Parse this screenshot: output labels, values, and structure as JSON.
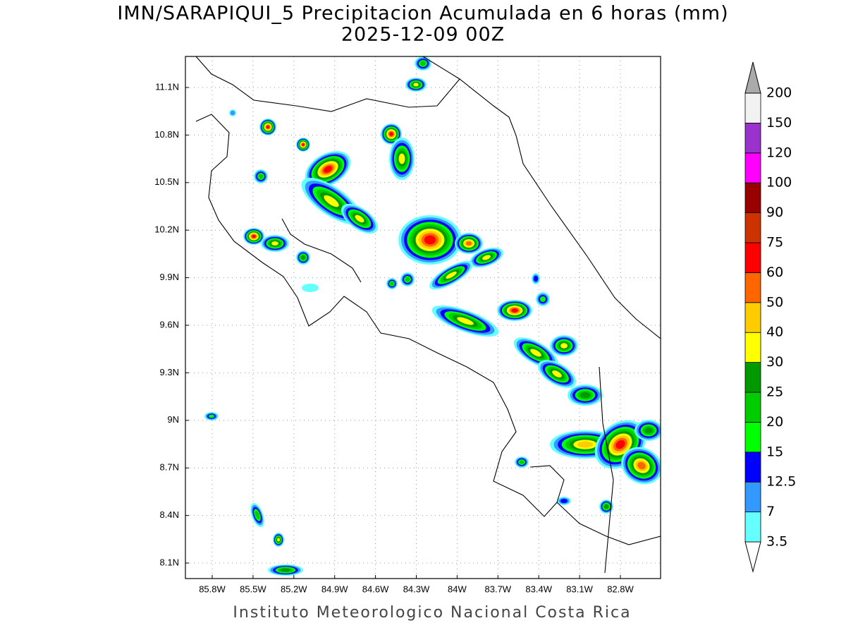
{
  "title": "IMN/SARAPIQUI_5 Precipitacion Acumulada en 6 horas (mm)",
  "subtitle": "2025-12-09 00Z",
  "footer": "Instituto Meteorologico Nacional Costa Rica",
  "lat_labels": [
    "11.1N",
    "10.8N",
    "10.5N",
    "10.2N",
    "9.9N",
    "9.6N",
    "9.3N",
    "9N",
    "8.7N",
    "8.4N",
    "8.1N"
  ],
  "lon_labels": [
    "85.8W",
    "85.5W",
    "85.2W",
    "84.9W",
    "84.6W",
    "84.3W",
    "84W",
    "83.7W",
    "83.4W",
    "83.1W",
    "82.8W"
  ],
  "colorbar": {
    "levels": [
      3.5,
      7,
      12.5,
      15,
      20,
      25,
      30,
      40,
      50,
      60,
      75,
      90,
      100,
      120,
      150,
      200
    ],
    "colors": [
      "#ffffff",
      "#66ffff",
      "#3399ff",
      "#0000ff",
      "#00ff00",
      "#00cc00",
      "#009900",
      "#ffff00",
      "#ffcc00",
      "#ff6600",
      "#ff0000",
      "#cc3300",
      "#990000",
      "#ff00ff",
      "#9933cc",
      "#f2f2f2",
      "#aaaaaa"
    ]
  }
}
